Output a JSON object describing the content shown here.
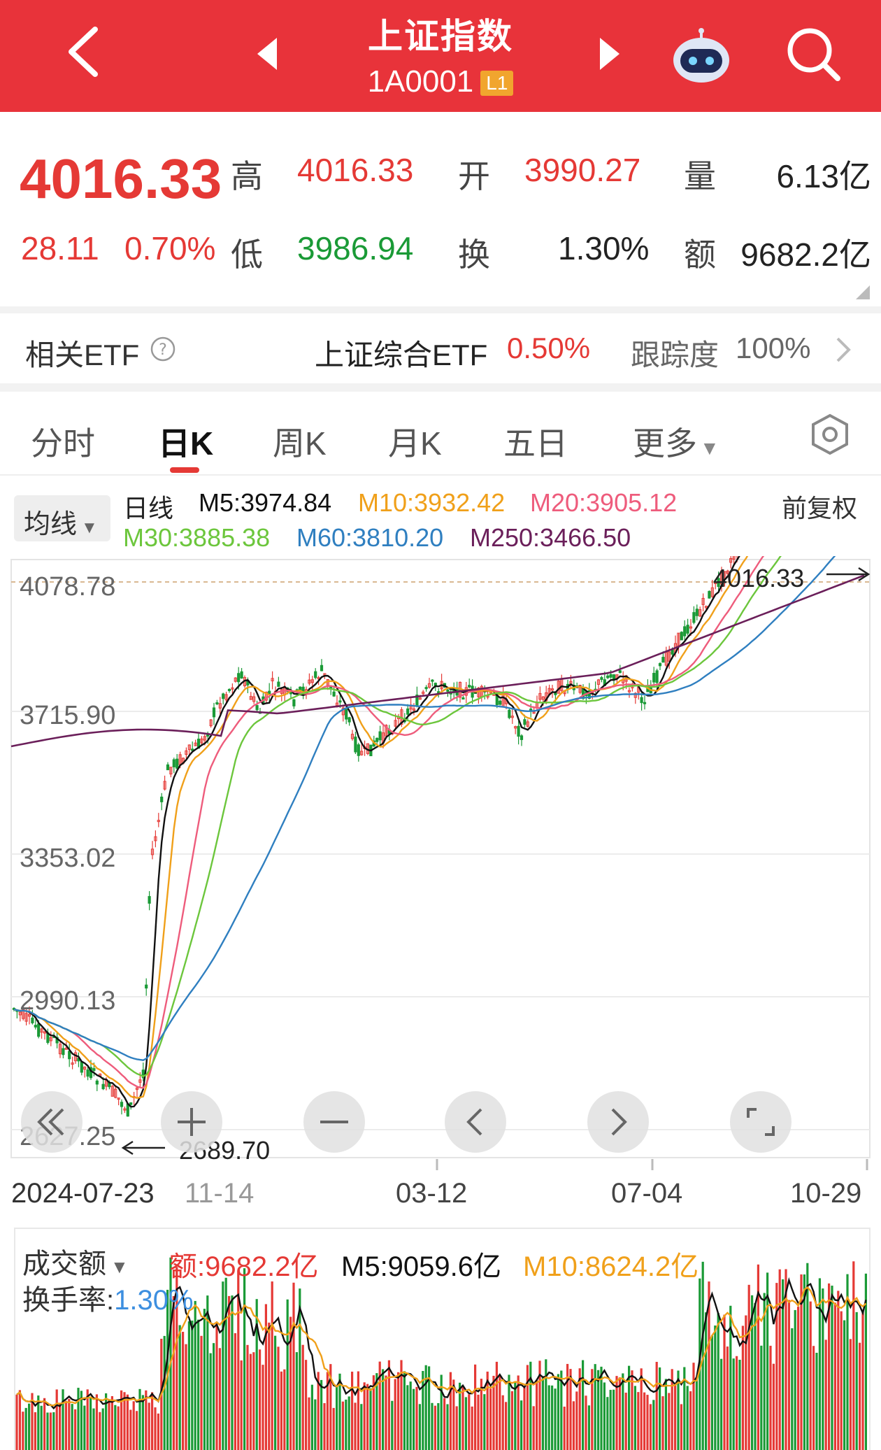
{
  "header": {
    "title": "上证指数",
    "code": "1A0001",
    "level": "L1"
  },
  "quote": {
    "price": "4016.33",
    "change": "28.11",
    "change_pct": "0.70%",
    "fields": {
      "high_label": "高",
      "high": "4016.33",
      "open_label": "开",
      "open": "3990.27",
      "volume_label": "量",
      "volume": "6.13亿",
      "low_label": "低",
      "low": "3986.94",
      "turnover_label": "换",
      "turnover": "1.30%",
      "amount_label": "额",
      "amount": "9682.2亿"
    }
  },
  "etf": {
    "label": "相关ETF",
    "name": "上证综合ETF",
    "pct": "0.50%",
    "track_label": "跟踪度",
    "track_value": "100%"
  },
  "tabs": [
    "分时",
    "日K",
    "周K",
    "月K",
    "五日",
    "更多"
  ],
  "active_tab": 1,
  "ma_legend": {
    "selector": "均线",
    "period": "日线",
    "adjust": "前复权",
    "items": [
      {
        "text": "M5:3974.84",
        "color": "#111111"
      },
      {
        "text": "M10:3932.42",
        "color": "#f0a01a"
      },
      {
        "text": "M20:3905.12",
        "color": "#ee5c7c"
      },
      {
        "text": "M30:3885.38",
        "color": "#6cc63c"
      },
      {
        "text": "M60:3810.20",
        "color": "#2f7fc0"
      },
      {
        "text": "M250:3466.50",
        "color": "#6b1f5a"
      }
    ]
  },
  "kline": {
    "y_labels": [
      "4078.78",
      "3715.90",
      "3353.02",
      "2990.13",
      "2627.25"
    ],
    "high_mark": "4016.33",
    "low_mark": "2689.70",
    "x_labels": [
      "2024-07-23",
      "11-14",
      "03-12",
      "07-04",
      "10-29"
    ]
  },
  "controls": [
    "fast-back",
    "zoom-in",
    "zoom-out",
    "step-left",
    "step-right",
    "fullscreen"
  ],
  "volume": {
    "selector": "成交额",
    "amount": "额:9682.2亿",
    "m5": "M5:9059.6亿",
    "m10": "M10:8624.2亿",
    "turnover_label": "换手率:",
    "turnover_value": "1.30%"
  },
  "colors": {
    "header_bg": "#e8333a",
    "up": "#e53935",
    "down": "#1a9a36",
    "turnover_value": "#3d8fe0"
  }
}
